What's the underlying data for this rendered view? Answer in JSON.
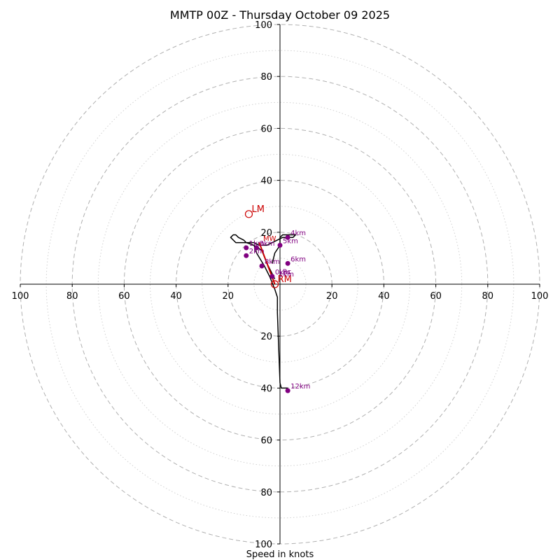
{
  "chart_data": {
    "type": "scatter",
    "subtype": "hodograph",
    "title": "MMTP 00Z - Thursday October 09 2025",
    "xlabel": "Speed in knots",
    "units": "knots",
    "range": [
      -100,
      100
    ],
    "tick_labels_x": [
      "100",
      "80",
      "60",
      "40",
      "20",
      "20",
      "40",
      "60",
      "80",
      "100"
    ],
    "tick_labels_y": [
      "100",
      "80",
      "60",
      "40",
      "20",
      "20",
      "40",
      "60",
      "80",
      "100"
    ],
    "major_rings": [
      20,
      40,
      60,
      80,
      100
    ],
    "minor_rings": [
      10,
      30,
      50,
      70,
      90
    ],
    "colors": {
      "trace": "#000000",
      "height_marker": "#800080",
      "motion": "#cc0000",
      "major_ring": "#b0b0b0",
      "minor_ring": "#d0d0d0"
    },
    "trace": {
      "name": "Wind profile",
      "u": [
        -2,
        -3,
        -3,
        -5,
        -7,
        -10,
        -13,
        -17,
        -19,
        -18,
        -17,
        -16,
        -14,
        -13,
        -10,
        -9,
        -6,
        -4,
        -2,
        -1,
        -1,
        0,
        0.5,
        3
      ],
      "v": [
        2,
        4,
        4,
        8,
        13,
        15,
        16,
        16,
        18,
        19,
        19,
        18,
        17,
        16,
        15,
        12,
        7,
        3,
        -2,
        -5,
        -11,
        -38,
        -40,
        -40
      ]
    },
    "detail_trace": {
      "u": [
        -13,
        -10,
        -8,
        -5,
        -3,
        -1,
        1,
        3,
        5,
        6,
        3,
        1,
        0,
        0,
        -2,
        -3
      ],
      "v": [
        16,
        16,
        15,
        15,
        16,
        17,
        18,
        18,
        18,
        19,
        19,
        19,
        18,
        15,
        12,
        8
      ]
    },
    "heights": [
      {
        "label": "0km",
        "u": -3,
        "v": 3
      },
      {
        "label": "1km",
        "u": -13,
        "v": 14
      },
      {
        "label": "2km",
        "u": -13,
        "v": 11
      },
      {
        "label": "3km",
        "u": -9,
        "v": 14
      },
      {
        "label": "4km",
        "u": 3,
        "v": 18
      },
      {
        "label": "5km",
        "u": 0,
        "v": 15
      },
      {
        "label": "6km",
        "u": 3,
        "v": 8
      },
      {
        "label": "8km",
        "u": -7,
        "v": 7
      },
      {
        "label": "12km",
        "u": 3,
        "v": -41
      }
    ],
    "small_labels": [
      {
        "label": "1km",
        "u": -0.5,
        "v": 4
      },
      {
        "label": "Rc",
        "u": 1,
        "v": 5
      }
    ],
    "storm_motion": [
      {
        "label": "LM",
        "u": -12,
        "v": 27
      },
      {
        "label": "RM",
        "u": -2,
        "v": 0
      }
    ],
    "mean_wind": {
      "label": "MW",
      "u": -7,
      "v": 14
    },
    "shear_vector": {
      "from_u": -2,
      "from_v": 0,
      "to_u": -8,
      "to_v": 16
    }
  }
}
